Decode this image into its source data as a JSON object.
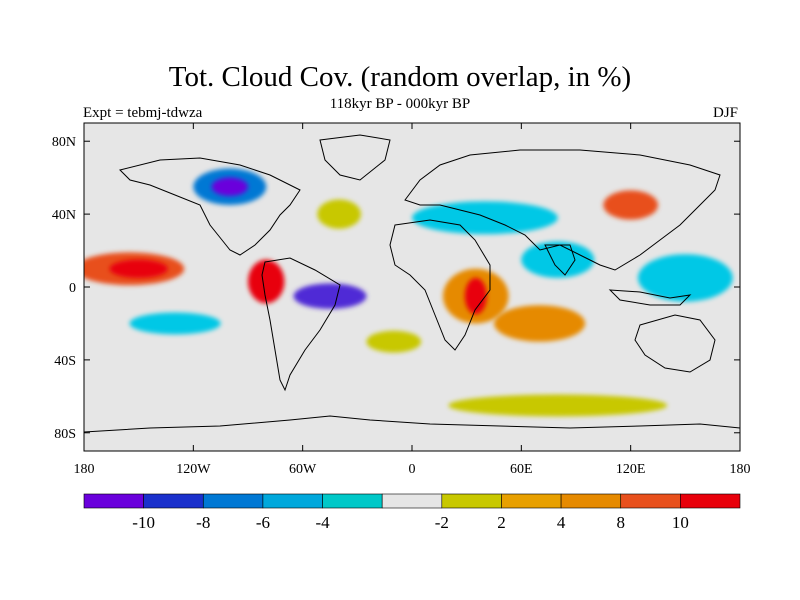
{
  "figure": {
    "title": "Tot. Cloud Cov. (random overlap, in %)",
    "subtitle": "118kyr BP - 000kyr BP",
    "left_label": "Expt = tebmj-tdwza",
    "right_label": "DJF"
  },
  "map": {
    "projection": "cylindrical equidistant",
    "lon_range": [
      -180,
      180
    ],
    "lat_range": [
      -90,
      90
    ],
    "lat_ticks": [
      {
        "value": 80,
        "label": "80N"
      },
      {
        "value": 40,
        "label": "40N"
      },
      {
        "value": 0,
        "label": "0"
      },
      {
        "value": -40,
        "label": "40S"
      },
      {
        "value": -80,
        "label": "80S"
      }
    ],
    "lon_ticks": [
      {
        "value": -180,
        "label": "180"
      },
      {
        "value": -120,
        "label": "120W"
      },
      {
        "value": -60,
        "label": "60W"
      },
      {
        "value": 0,
        "label": "0"
      },
      {
        "value": 60,
        "label": "60E"
      },
      {
        "value": 120,
        "label": "120E"
      },
      {
        "value": 180,
        "label": "180"
      }
    ],
    "background_color": "#e6e6e6",
    "anomaly_regions": [
      {
        "name": "pacific-positive",
        "lon": -155,
        "lat": 10,
        "rlon": 30,
        "rlat": 9,
        "color": "#e8501c"
      },
      {
        "name": "pacific-core",
        "lon": -150,
        "lat": 10,
        "rlon": 16,
        "rlat": 5,
        "color": "#e8000b"
      },
      {
        "name": "panama-positive",
        "lon": -80,
        "lat": 3,
        "rlon": 10,
        "rlat": 12,
        "color": "#e8000b"
      },
      {
        "name": "amazon-negative",
        "lon": -45,
        "lat": -5,
        "rlon": 20,
        "rlat": 7,
        "color": "#4f2bd6"
      },
      {
        "name": "asia-negative",
        "lon": 40,
        "lat": 38,
        "rlon": 40,
        "rlat": 9,
        "color": "#00c8e6"
      },
      {
        "name": "india-negative",
        "lon": 80,
        "lat": 15,
        "rlon": 20,
        "rlat": 10,
        "color": "#00c8e6"
      },
      {
        "name": "east-africa-positive",
        "lon": 35,
        "lat": -5,
        "rlon": 18,
        "rlat": 15,
        "color": "#e68a00"
      },
      {
        "name": "east-africa-core",
        "lon": 35,
        "lat": -5,
        "rlon": 6,
        "rlat": 10,
        "color": "#e8000b"
      },
      {
        "name": "indian-ocean-positive",
        "lon": 70,
        "lat": -20,
        "rlon": 25,
        "rlat": 10,
        "color": "#e68a00"
      },
      {
        "name": "west-pacific-negative",
        "lon": 150,
        "lat": 5,
        "rlon": 18,
        "rlat": 8,
        "color": "#6a00dc"
      },
      {
        "name": "west-pacific-halo",
        "lon": 150,
        "lat": 5,
        "rlon": 26,
        "rlat": 13,
        "color": "#00c8e6"
      },
      {
        "name": "north-america-negative",
        "lon": -100,
        "lat": 55,
        "rlon": 20,
        "rlat": 10,
        "color": "#0078d4"
      },
      {
        "name": "north-america-core",
        "lon": -100,
        "lat": 55,
        "rlon": 10,
        "rlat": 5,
        "color": "#6a00dc"
      },
      {
        "name": "east-asia-positive",
        "lon": 120,
        "lat": 45,
        "rlon": 15,
        "rlat": 8,
        "color": "#e8501c"
      },
      {
        "name": "south-pacific-negative",
        "lon": -130,
        "lat": -20,
        "rlon": 25,
        "rlat": 6,
        "color": "#00c8e6"
      },
      {
        "name": "north-atlantic-positive",
        "lon": -40,
        "lat": 40,
        "rlon": 12,
        "rlat": 8,
        "color": "#c8c800"
      },
      {
        "name": "southern-ocean-positive",
        "lon": 80,
        "lat": -65,
        "rlon": 60,
        "rlat": 6,
        "color": "#c8c800"
      },
      {
        "name": "south-atlantic-positive",
        "lon": -10,
        "lat": -30,
        "rlon": 15,
        "rlat": 6,
        "color": "#c8c800"
      }
    ]
  },
  "colorbar": {
    "colors": [
      "#6a00dc",
      "#1a30cc",
      "#0078d4",
      "#00a8dc",
      "#00c8c8",
      "#e6e6e6",
      "#c8c800",
      "#e8a000",
      "#e68a00",
      "#e8501c",
      "#e8000b"
    ],
    "labels": [
      "-10",
      "-8",
      "-6",
      "-4",
      "-2",
      "2",
      "4",
      "8",
      "10"
    ]
  }
}
